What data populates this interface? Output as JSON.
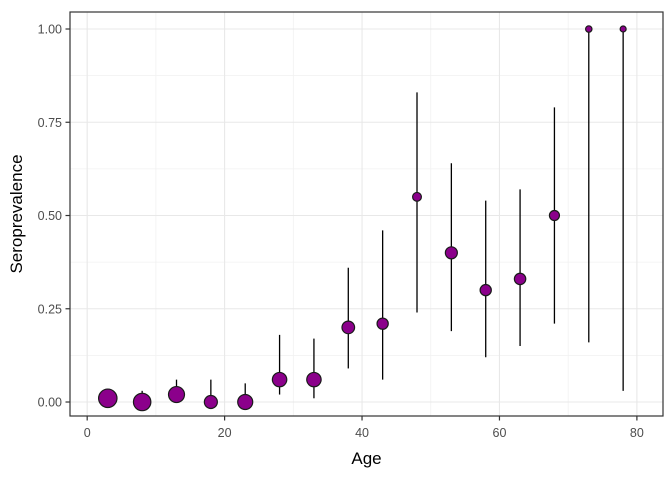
{
  "chart_data": {
    "type": "scatter",
    "title": "",
    "xlabel": "Age",
    "ylabel": "Seroprevalence",
    "xlim": [
      -2.5,
      83.8
    ],
    "ylim": [
      -0.0375,
      1.0456
    ],
    "grid": true,
    "legend": "none",
    "x_ticks": [
      0,
      20,
      40,
      60,
      80
    ],
    "x_tick_labels": [
      "0",
      "20",
      "40",
      "60",
      "80"
    ],
    "x_minor_ticks": [
      10,
      30,
      50,
      70
    ],
    "y_ticks": [
      0,
      0.25,
      0.5,
      0.75,
      1
    ],
    "y_tick_labels": [
      "0.00",
      "0.25",
      "0.50",
      "0.75",
      "1.00"
    ],
    "y_minor_ticks": [
      0.125,
      0.375,
      0.625,
      0.875
    ],
    "series": [
      {
        "name": "seroprevalence-by-age",
        "marker": "circle-size-varies",
        "points": [
          {
            "age": 3,
            "seroprevalence": 0.01,
            "ci_lower": 0.0,
            "ci_upper": 0.03,
            "radius_px": 9.2
          },
          {
            "age": 8,
            "seroprevalence": 0.0,
            "ci_lower": 0.0,
            "ci_upper": 0.03,
            "radius_px": 8.7
          },
          {
            "age": 13,
            "seroprevalence": 0.02,
            "ci_lower": 0.0,
            "ci_upper": 0.06,
            "radius_px": 8.0
          },
          {
            "age": 18,
            "seroprevalence": 0.0,
            "ci_lower": 0.0,
            "ci_upper": 0.06,
            "radius_px": 6.5
          },
          {
            "age": 23,
            "seroprevalence": 0.0,
            "ci_lower": 0.0,
            "ci_upper": 0.05,
            "radius_px": 7.5
          },
          {
            "age": 28,
            "seroprevalence": 0.06,
            "ci_lower": 0.02,
            "ci_upper": 0.18,
            "radius_px": 7.2
          },
          {
            "age": 33,
            "seroprevalence": 0.06,
            "ci_lower": 0.01,
            "ci_upper": 0.17,
            "radius_px": 7.2
          },
          {
            "age": 38,
            "seroprevalence": 0.2,
            "ci_lower": 0.09,
            "ci_upper": 0.36,
            "radius_px": 6.3
          },
          {
            "age": 43,
            "seroprevalence": 0.21,
            "ci_lower": 0.06,
            "ci_upper": 0.46,
            "radius_px": 5.6
          },
          {
            "age": 48,
            "seroprevalence": 0.55,
            "ci_lower": 0.24,
            "ci_upper": 0.83,
            "radius_px": 4.4
          },
          {
            "age": 53,
            "seroprevalence": 0.4,
            "ci_lower": 0.19,
            "ci_upper": 0.64,
            "radius_px": 6.0
          },
          {
            "age": 58,
            "seroprevalence": 0.3,
            "ci_lower": 0.12,
            "ci_upper": 0.54,
            "radius_px": 5.6
          },
          {
            "age": 63,
            "seroprevalence": 0.33,
            "ci_lower": 0.15,
            "ci_upper": 0.57,
            "radius_px": 5.7
          },
          {
            "age": 68,
            "seroprevalence": 0.5,
            "ci_lower": 0.21,
            "ci_upper": 0.79,
            "radius_px": 5.0
          },
          {
            "age": 73,
            "seroprevalence": 1.0,
            "ci_lower": 0.16,
            "ci_upper": 1.0,
            "radius_px": 3.2
          },
          {
            "age": 78,
            "seroprevalence": 1.0,
            "ci_lower": 0.03,
            "ci_upper": 1.0,
            "radius_px": 3.0
          }
        ]
      }
    ]
  },
  "colors": {
    "point_fill": "#8B008B",
    "point_stroke": "#1a1a1a",
    "error_bar": "#000000",
    "grid_major": "#e8e8e8",
    "grid_minor": "#f1f1f1",
    "panel_border": "#333333",
    "tick_mark": "#333333",
    "tick_label": "#4d4d4d",
    "axis_title": "#000000",
    "panel_background": "#ffffff",
    "figure_background": "#ffffff"
  }
}
